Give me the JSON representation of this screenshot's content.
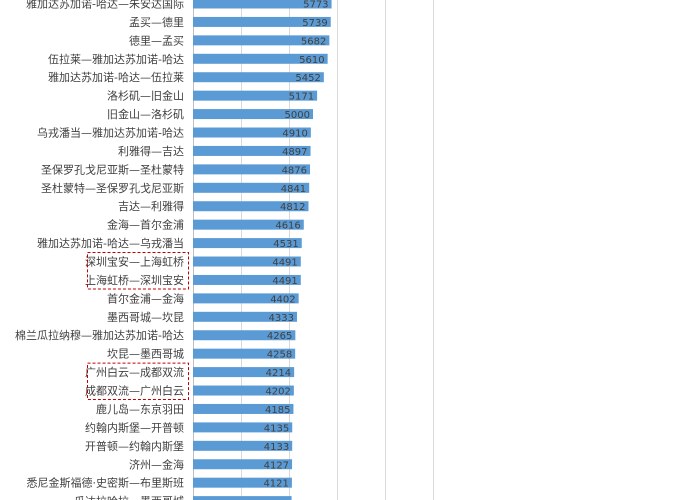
{
  "chart_data": {
    "type": "bar",
    "orientation": "horizontal",
    "xlim": [
      0,
      10000
    ],
    "grid": true,
    "bar_color": "#5B9BD5",
    "highlight_color": "#C00000",
    "categories": [
      "雅加达苏加诺-哈达—朱安达国际",
      "孟买—德里",
      "德里—孟买",
      "伍拉莱—雅加达苏加诺-哈达",
      "雅加达苏加诺-哈达—伍拉莱",
      "洛杉矶—旧金山",
      "旧金山—洛杉矶",
      "乌戎潘当—雅加达苏加诺-哈达",
      "利雅得—吉达",
      "圣保罗孔戈尼亚斯—圣杜蒙特",
      "圣杜蒙特—圣保罗孔戈尼亚斯",
      "吉达—利雅得",
      "金海—首尔金浦",
      "雅加达苏加诺-哈达—乌戎潘当",
      "深圳宝安—上海虹桥",
      "上海虹桥—深圳宝安",
      "首尔金浦—金海",
      "墨西哥城—坎昆",
      "棉兰瓜拉纳穆—雅加达苏加诺-哈达",
      "坎昆—墨西哥城",
      "广州白云—成都双流",
      "成都双流—广州白云",
      "鹿儿岛—东京羽田",
      "约翰内斯堡—开普顿",
      "开普顿—约翰内斯堡",
      "济州—金海",
      "悉尼金斯福德·史密斯—布里斯班",
      "瓜达拉哈拉—墨西哥城"
    ],
    "values": [
      5773,
      5739,
      5682,
      5610,
      5452,
      5171,
      5000,
      4910,
      4897,
      4876,
      4841,
      4812,
      4616,
      4531,
      4491,
      4491,
      4402,
      4333,
      4265,
      4258,
      4214,
      4202,
      4185,
      4135,
      4133,
      4127,
      4121,
      4108
    ],
    "value_labels": [
      "5773",
      "5739",
      "5682",
      "5610",
      "5452",
      "5171",
      "5000",
      "4910",
      "4897",
      "4876",
      "4841",
      "4812",
      "4616",
      "4531",
      "4491",
      "4491",
      "4402",
      "4333",
      "4265",
      "4258",
      "4214",
      "4202",
      "4185",
      "4135",
      "4133",
      "4127",
      "4121",
      ""
    ],
    "highlight_groups": [
      [
        14,
        15
      ],
      [
        20,
        21
      ]
    ]
  }
}
